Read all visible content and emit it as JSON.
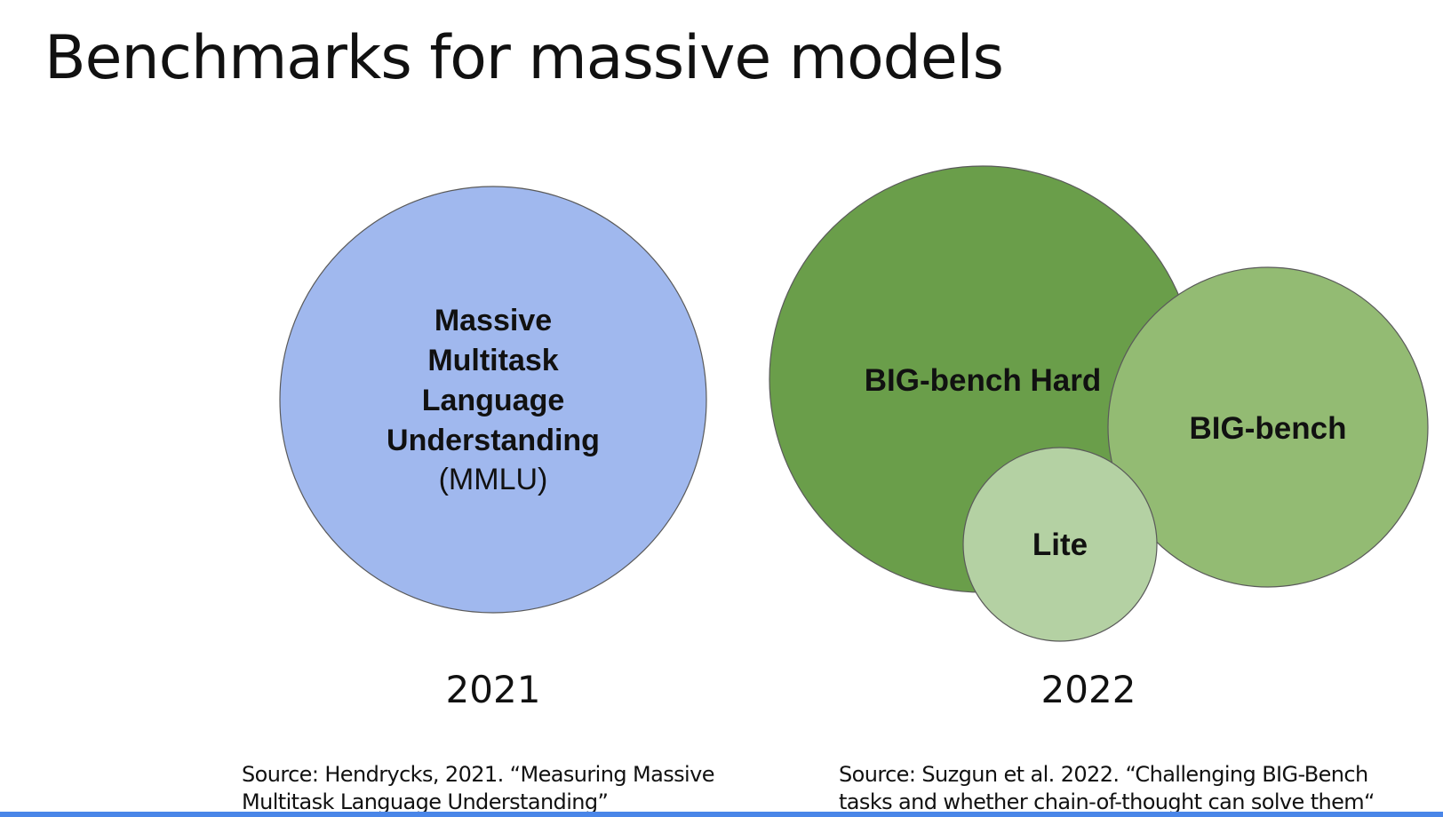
{
  "slide": {
    "title": "Benchmarks for massive models"
  },
  "left": {
    "circle": {
      "lines": [
        "Massive",
        "Multitask",
        "Language",
        "Understanding"
      ],
      "abbrev": "(MMLU)",
      "color": "#a0b8ee"
    },
    "year": "2021",
    "source_line1": "Source: Hendrycks, 2021. “Measuring Massive",
    "source_line2": "Multitask Language Understanding”"
  },
  "right": {
    "circles": {
      "big_bench_hard": {
        "label": "BIG-bench Hard",
        "color": "#6a9e4a"
      },
      "big_bench": {
        "label": "BIG-bench",
        "color": "#93bb73"
      },
      "lite": {
        "label": "Lite",
        "color": "#b4d1a3"
      }
    },
    "year": "2022",
    "source_line1": "Source: Suzgun et al. 2022. “Challenging BIG-Bench",
    "source_line2": "tasks and whether chain-of-thought can solve them“"
  },
  "colors": {
    "outline": "#5a5a5a",
    "accent_bar": "#4a86e8"
  }
}
